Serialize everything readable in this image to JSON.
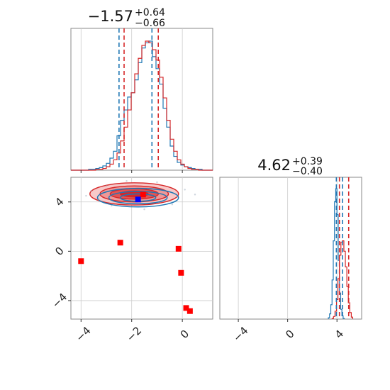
{
  "chart_data": {
    "type": "corner",
    "colors": {
      "series_a": "#1f77b4",
      "series_b": "#d62728",
      "marker_red": "#ff0000",
      "marker_blue": "#0000ff",
      "grid": "#cccccc"
    },
    "panels": [
      {
        "id": "hist-p1",
        "kind": "histogram",
        "title": {
          "value": "−1.57",
          "plus": "+0.64",
          "minus": "−0.66"
        },
        "xlim": [
          -4.4,
          1.2
        ],
        "xticks": [
          -4,
          -2,
          0
        ],
        "series": [
          {
            "name": "",
            "color": "#1f77b4",
            "quantiles": [
              -2.5,
              -1.2
            ],
            "bins_start": -4.4,
            "bin_width": 0.14,
            "counts": [
              0,
              0,
              0,
              0,
              0,
              1,
              1,
              2,
              3,
              5,
              8,
              14,
              22,
              40,
              58,
              70,
              85,
              90,
              105,
              125,
              142,
              148,
              150,
              132,
              118,
              100,
              72,
              50,
              28,
              16,
              9,
              6,
              4,
              3,
              2,
              1,
              1,
              0,
              0,
              0
            ]
          },
          {
            "name": "",
            "color": "#d62728",
            "quantiles": [
              -2.3,
              -0.95
            ],
            "bins_start": -4.4,
            "bin_width": 0.14,
            "counts": [
              0,
              0,
              0,
              0,
              0,
              0,
              0,
              1,
              1,
              2,
              4,
              7,
              12,
              20,
              34,
              50,
              70,
              90,
              112,
              130,
              145,
              150,
              148,
              140,
              128,
              108,
              84,
              58,
              36,
              22,
              12,
              7,
              4,
              2,
              1,
              1,
              0,
              0,
              0,
              0
            ]
          }
        ]
      },
      {
        "id": "hist-p2",
        "kind": "histogram",
        "title": {
          "value": "4.62",
          "plus": "+0.39",
          "minus": "−0.40"
        },
        "xlim": [
          -5.5,
          6.0
        ],
        "xticks": [
          -4,
          0,
          4
        ],
        "series": [
          {
            "name": "",
            "color": "#1f77b4",
            "quantiles": [
              3.95,
              4.45
            ],
            "bins_start": 3.3,
            "bin_width": 0.1,
            "counts": [
              2,
              8,
              22,
              60,
              120,
              180,
              200,
              160,
              90,
              40,
              15,
              5,
              1
            ]
          },
          {
            "name": "",
            "color": "#d62728",
            "quantiles": [
              4.2,
              4.95
            ],
            "bins_start": 3.6,
            "bin_width": 0.12,
            "counts": [
              1,
              4,
              12,
              30,
              62,
              98,
              118,
              120,
              104,
              80,
              50,
              25,
              10,
              3
            ]
          }
        ]
      },
      {
        "id": "joint",
        "kind": "joint",
        "xlim": [
          -4.4,
          1.2
        ],
        "ylim": [
          -5.5,
          6.0
        ],
        "xticks": [
          -4,
          -2,
          0
        ],
        "yticks": [
          -4,
          0,
          4
        ],
        "contours_red": {
          "center": [
            -1.9,
            4.65
          ],
          "radii": [
            [
              1.75,
              0.9
            ],
            [
              1.35,
              0.65
            ],
            [
              0.95,
              0.42
            ],
            [
              0.55,
              0.24
            ]
          ]
        },
        "contours_blue": {
          "center": [
            -1.75,
            4.35
          ],
          "radii": [
            [
              1.6,
              0.75
            ],
            [
              1.15,
              0.5
            ],
            [
              0.7,
              0.3
            ]
          ]
        },
        "red_points": [
          [
            -4.0,
            -0.8
          ],
          [
            -2.45,
            0.7
          ],
          [
            -0.15,
            0.2
          ],
          [
            -0.05,
            -1.75
          ],
          [
            0.15,
            -4.6
          ],
          [
            0.3,
            -4.85
          ],
          [
            -1.55,
            4.6
          ]
        ],
        "blue_points": [
          [
            -1.75,
            4.2
          ]
        ]
      }
    ]
  }
}
